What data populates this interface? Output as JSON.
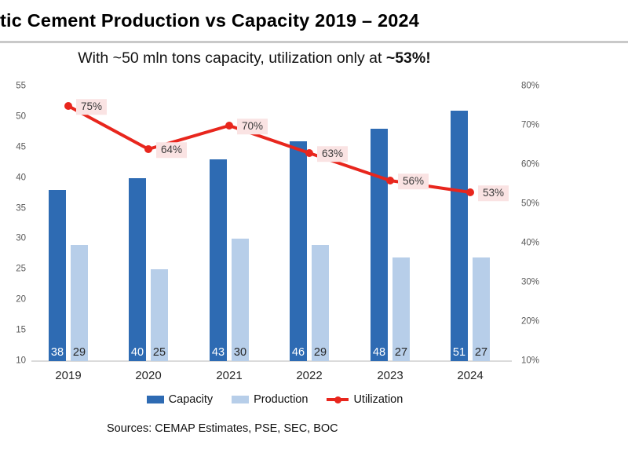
{
  "header": {
    "title": "tic Cement Production vs Capacity 2019 – 2024",
    "subtitle_prefix": "With ~50 mln tons capacity, utilization only at ",
    "subtitle_emphasis": "~53%!"
  },
  "chart_data": {
    "type": "bar",
    "subtype": "grouped-bars-with-line",
    "title": "tic Cement Production vs Capacity 2019 – 2024",
    "subtitle": "With ~50 mln tons capacity, utilization only at ~53%!",
    "categories": [
      "2019",
      "2020",
      "2021",
      "2022",
      "2023",
      "2024"
    ],
    "series": [
      {
        "name": "Capacity",
        "type": "bar",
        "axis": "left",
        "color": "#2E6BB3",
        "label_color": "#FFFFFF",
        "values": [
          38,
          40,
          43,
          46,
          48,
          51
        ]
      },
      {
        "name": "Production",
        "type": "bar",
        "axis": "left",
        "color": "#B7CEE9",
        "label_color": "#262626",
        "values": [
          29,
          25,
          30,
          29,
          27,
          27
        ]
      },
      {
        "name": "Utilization",
        "type": "line",
        "axis": "right",
        "color": "#E8261D",
        "label_color": "#3A3A3A",
        "label_bg": "#FAE3E3",
        "values": [
          75,
          64,
          70,
          63,
          56,
          53
        ],
        "labels": [
          "75%",
          "64%",
          "70%",
          "63%",
          "56%",
          "53%"
        ]
      }
    ],
    "left_axis": {
      "min": 10,
      "max": 55,
      "step": 5,
      "tick_labels": [
        "10",
        "15",
        "20",
        "25",
        "30",
        "35",
        "40",
        "45",
        "50",
        "55"
      ]
    },
    "right_axis": {
      "min": 10,
      "max": 80,
      "step": 10,
      "tick_labels": [
        "10%",
        "20%",
        "30%",
        "40%",
        "50%",
        "60%",
        "70%",
        "80%"
      ]
    },
    "grid": false,
    "legend_position": "bottom"
  },
  "footer": {
    "sources": "Sources: CEMAP Estimates, PSE, SEC, BOC"
  },
  "colors": {
    "capacity": "#2E6BB3",
    "production": "#B7CEE9",
    "utilization": "#E8261D",
    "utilization_label_bg": "#FAE3E3",
    "title_rule": "#C9C9C9",
    "axis_text": "#595959",
    "baseline": "#DBDBDB"
  }
}
